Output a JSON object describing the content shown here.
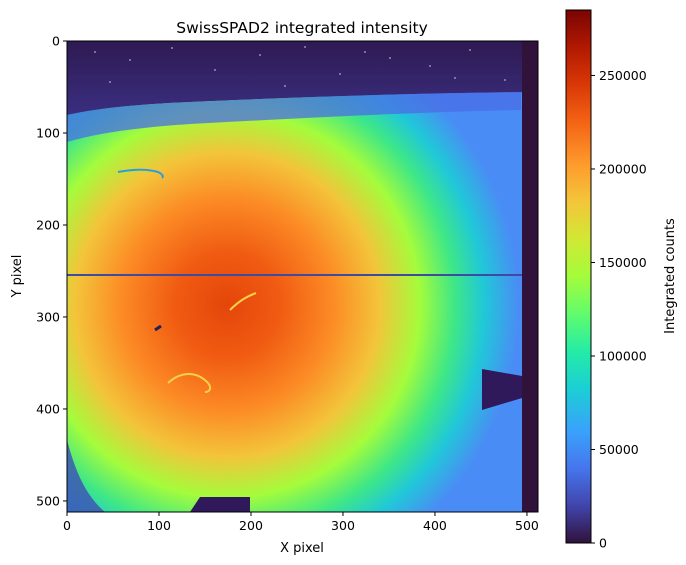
{
  "chart_data": {
    "type": "heatmap",
    "title": "SwissSPAD2 integrated intensity",
    "xlabel": "X pixel",
    "ylabel": "Y pixel",
    "colorbar_label": "Integrated counts",
    "colormap": "turbo",
    "xlim": [
      0,
      512
    ],
    "ylim": [
      512,
      0
    ],
    "vmin": 0,
    "vmax": 285000,
    "x_ticks": [
      0,
      100,
      200,
      300,
      400,
      500
    ],
    "y_ticks": [
      0,
      100,
      200,
      300,
      400,
      500
    ],
    "colorbar_ticks": [
      0,
      50000,
      100000,
      150000,
      200000,
      250000
    ],
    "features": {
      "intensity_center": {
        "x": 200,
        "y": 290,
        "value": 245000
      },
      "background_top_band": {
        "y_max": 60,
        "value": 15000
      },
      "right_edge_dark_column": {
        "x_min": 495,
        "value": 12000
      },
      "horizontal_line_artifact": {
        "y": 255,
        "x_range": [
          0,
          495
        ],
        "value": 40000
      },
      "right_notch": {
        "x_range": [
          452,
          495
        ],
        "y_range": [
          358,
          400
        ],
        "value": 20000
      },
      "bottom_notch": {
        "x_range": [
          155,
          200
        ],
        "y_range": [
          495,
          512
        ],
        "value": 20000
      }
    }
  }
}
